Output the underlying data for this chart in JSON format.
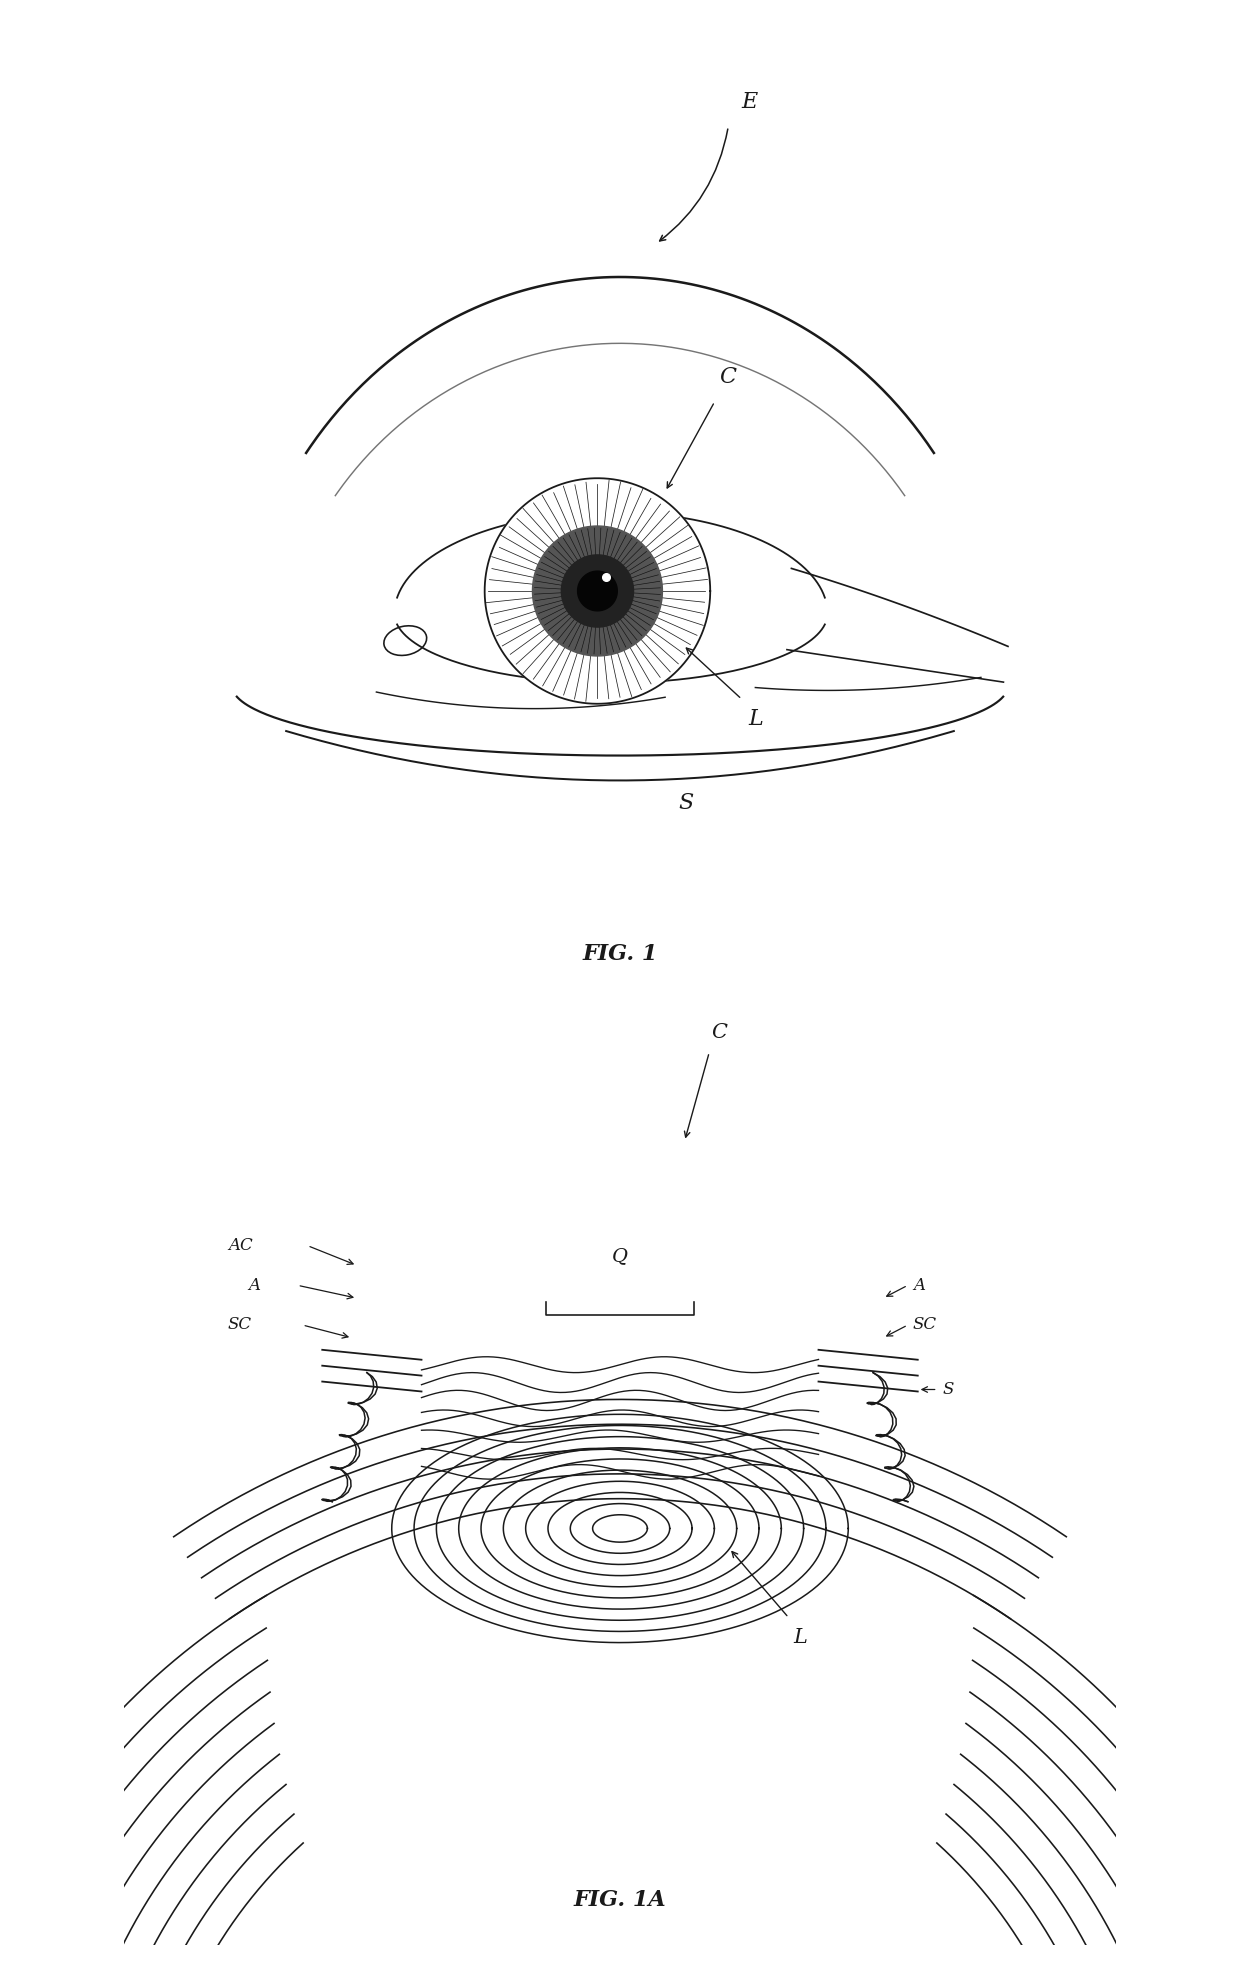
{
  "fig1_label": "FIG. 1",
  "fig1a_label": "FIG. 1A",
  "label_E": "E",
  "label_C": "C",
  "label_L": "L",
  "label_S": "S",
  "label_AC": "AC",
  "label_A": "A",
  "label_SC": "SC",
  "label_Q": "Q",
  "bg_color": "#ffffff",
  "line_color": "#1a1a1a",
  "fig_width": 12.4,
  "fig_height": 19.85
}
